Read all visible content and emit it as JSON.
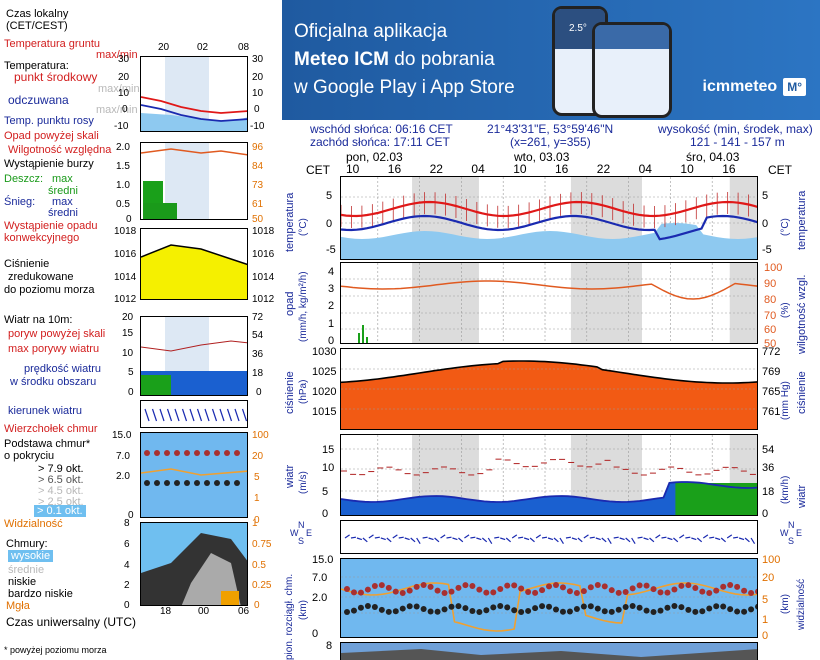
{
  "legend": {
    "local_time": "Czas lokalny",
    "local_time_zone": "(CET/CEST)",
    "local_hours": [
      "20",
      "02",
      "08"
    ],
    "ground_temp": "Temperatura gruntu",
    "ground_temp_range": "max/min",
    "temperature": "Temperatura:",
    "mid_point": "punkt środkowy",
    "mid_range": "max/min",
    "feels": "odczuwana",
    "feels_range": "max/min",
    "dew_point": "Temp. punktu rosy",
    "temp_ticks": [
      "30",
      "20",
      "10",
      "0",
      "-10"
    ],
    "precip_over": "Opad powyżej skali",
    "rel_humidity": "Wilgotność względna",
    "storm": "Wystąpienie burzy",
    "rain_label": "Deszcz:",
    "snow_label": "Śnieg:",
    "max": "max",
    "mean": "średni",
    "precip_event": "Wystąpienie opadu",
    "precip_event2": "konwekcyjnego",
    "precip_ticks": [
      "2.0",
      "1.5",
      "1.0",
      "0.5",
      "0"
    ],
    "humidity_ticks": [
      "96",
      "84",
      "73",
      "61",
      "50"
    ],
    "pressure_label": "Ciśnienie",
    "pressure_label2": "zredukowane",
    "pressure_label3": "do poziomu morza",
    "pressure_ticks": [
      "1018",
      "1016",
      "1014",
      "1012"
    ],
    "wind_label": "Wiatr na 10m:",
    "gust_over": "poryw powyżej skali",
    "gust_max": "max porywy wiatru",
    "wind_speed": "prędkość wiatru",
    "wind_speed2": "w środku obszaru",
    "wind_ticks": [
      "20",
      "15",
      "10",
      "5",
      "0"
    ],
    "wind_kmh_ticks": [
      "72",
      "54",
      "36",
      "18",
      "0"
    ],
    "wind_dir": "kierunek wiatru",
    "cloud_top": "Wierzchołek chmur",
    "cloud_base": "Podstawa chmur*",
    "cloud_base2": "o pokryciu",
    "okt": [
      "> 7.9 okt.",
      "> 6.5 okt.",
      "> 4.5 okt.",
      "> 2.5 okt.",
      "> 0.1 okt."
    ],
    "cloud_ticks": [
      "15.0",
      "7.0",
      "2.0",
      "0"
    ],
    "vis_ticks": [
      "100",
      "20",
      "5",
      "1",
      "0"
    ],
    "visibility": "Widzialność",
    "clouds": "Chmury:",
    "high": "wysokie",
    "medium": "średnie",
    "low": "niskie",
    "very_low": "bardzo niskie",
    "fog": "Mgła",
    "clouds_ticks": [
      "8",
      "6",
      "4",
      "2",
      "0"
    ],
    "clouds_frac_ticks": [
      "1",
      "0.75",
      "0.5",
      "0.25",
      "0"
    ],
    "utc": "Czas uniwersalny (UTC)",
    "utc_hours": [
      "18",
      "00",
      "06"
    ],
    "footnote": "* powyżej poziomu morza"
  },
  "banner": {
    "line1": "Oficjalna aplikacja",
    "line2_bold": "Meteo ICM",
    "line2_rest": " do pobrania",
    "line3": "w Google Play i App Store",
    "brand": "icmmeteo",
    "brand_mark": "M°",
    "phone_temp": "2.5°"
  },
  "info": {
    "sunrise": "wschód słońca: 06:16 CET",
    "sunset": "zachód słońca: 17:11 CET",
    "coords": "21°43'31\"E, 53°59'46\"N",
    "grid": "(x=261,  y=355)",
    "altitude_label": "wysokość (min, środek, max)",
    "altitude_values": "121 - 141 - 157 m"
  },
  "chart": {
    "tz": "CET",
    "days": [
      "pon, 02.03",
      "wto, 03.03",
      "śro, 04.03"
    ],
    "hours": [
      "10",
      "16",
      "22",
      "04",
      "10",
      "16",
      "22",
      "04",
      "10",
      "16"
    ],
    "temp_label": "temperatura",
    "temp_unit": "(°C)",
    "temp_ticks": [
      "5",
      "0",
      "-5"
    ],
    "precip_label": "opad",
    "precip_unit": "(mm/h, kg/m²/h)",
    "precip_ticks": [
      "4",
      "3",
      "2",
      "1",
      "0"
    ],
    "humidity_label": "wilgotność wzgl.",
    "humidity_unit": "(%)",
    "humidity_ticks": [
      "100",
      "90",
      "80",
      "70",
      "60",
      "50"
    ],
    "pressure_label": "ciśnienie",
    "pressure_unit_l": "(hPa)",
    "pressure_unit_r": "(mm Hg)",
    "pressure_ticks": [
      "1030",
      "1025",
      "1020",
      "1015"
    ],
    "pressure_mm_ticks": [
      "772",
      "769",
      "765",
      "761"
    ],
    "wind_label": "wiatr",
    "wind_unit_l": "(m/s)",
    "wind_unit_r": "(km/h)",
    "wind_ticks": [
      "15",
      "10",
      "5",
      "0"
    ],
    "wind_kmh_ticks": [
      "54",
      "36",
      "18",
      "0"
    ],
    "compass": [
      "N",
      "S",
      "W",
      "E"
    ],
    "cloud_label": "pion. rozciągł. chm.",
    "cloud_unit": "(km)",
    "cloud_ticks": [
      "15.0",
      "7.0",
      "2.0",
      "0"
    ],
    "vis_label": "widzialność",
    "vis_unit": "(km)",
    "vis_ticks": [
      "100",
      "20",
      "5",
      "1",
      "0"
    ],
    "bottom_ticks": [
      "8"
    ]
  },
  "colors": {
    "temp_red": "#e01818",
    "temp_blue": "#1a2ab0",
    "light_blue": "#8ec9f0",
    "pressure_orange": "#f25a14",
    "pressure_yellow": "#f5f000",
    "wind_blue": "#1a2ab0",
    "wind_green": "#1aa01a",
    "humidity": "#e05a20",
    "night_shade": "#dcdcdc"
  }
}
